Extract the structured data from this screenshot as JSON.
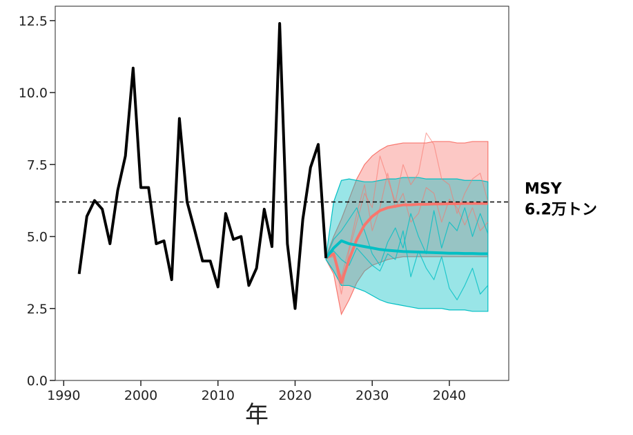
{
  "chart_data": {
    "type": "line",
    "xlabel": "年",
    "xlim": [
      1988.9,
      2047.7
    ],
    "xticks": [
      1990,
      2000,
      2010,
      2020,
      2030,
      2040
    ],
    "ylim": [
      0,
      13
    ],
    "yticks": [
      {
        "value": 0,
        "label": "0.0"
      },
      2.5,
      {
        "value": 5,
        "label": "5.0"
      },
      7.5,
      {
        "value": 10,
        "label": "10.0"
      },
      12.5
    ],
    "hline": {
      "value": 6.2,
      "labels": [
        "MSY",
        "6.2万トン"
      ],
      "color": "#000000"
    },
    "bands": [
      {
        "color": "#f8766d",
        "x": [
          2024,
          2025,
          2026,
          2027,
          2028,
          2029,
          2030,
          2031,
          2032,
          2033,
          2034,
          2035,
          2036,
          2037,
          2038,
          2039,
          2040,
          2041,
          2042,
          2043,
          2044,
          2045
        ],
        "lower": [
          4.2,
          3.7,
          2.3,
          2.8,
          3.4,
          3.8,
          4.0,
          4.1,
          4.2,
          4.25,
          4.3,
          4.3,
          4.3,
          4.3,
          4.3,
          4.3,
          4.3,
          4.3,
          4.3,
          4.3,
          4.3,
          4.3
        ],
        "upper": [
          4.3,
          5.0,
          5.6,
          6.3,
          7.0,
          7.5,
          7.8,
          8.0,
          8.15,
          8.2,
          8.25,
          8.25,
          8.25,
          8.25,
          8.3,
          8.3,
          8.3,
          8.25,
          8.25,
          8.3,
          8.3,
          8.3
        ]
      },
      {
        "color": "#00bfc4",
        "x": [
          2024,
          2025,
          2026,
          2027,
          2028,
          2029,
          2030,
          2031,
          2032,
          2033,
          2034,
          2035,
          2036,
          2037,
          2038,
          2039,
          2040,
          2041,
          2042,
          2043,
          2044,
          2045
        ],
        "lower": [
          4.2,
          3.8,
          3.3,
          3.3,
          3.2,
          3.1,
          2.95,
          2.8,
          2.7,
          2.65,
          2.6,
          2.55,
          2.5,
          2.5,
          2.5,
          2.5,
          2.45,
          2.45,
          2.45,
          2.4,
          2.4,
          2.4
        ],
        "upper": [
          4.3,
          6.2,
          6.95,
          7.0,
          6.95,
          6.9,
          6.9,
          6.95,
          7.0,
          7.0,
          7.05,
          7.05,
          7.05,
          7.0,
          7.0,
          7.0,
          7.0,
          7.0,
          6.95,
          6.95,
          6.95,
          6.9
        ]
      }
    ],
    "series": [
      {
        "color": "#f8766d",
        "line_width": 1.2,
        "opacity": 0.6,
        "x": [
          2024,
          2025,
          2026,
          2027,
          2028,
          2029,
          2030,
          2031,
          2032,
          2033,
          2034,
          2035,
          2036,
          2037,
          2038,
          2039,
          2040,
          2041,
          2042,
          2043,
          2044,
          2045
        ],
        "values": [
          4.25,
          4.4,
          3.0,
          4.5,
          5.5,
          6.5,
          6.0,
          7.8,
          7.0,
          6.2,
          7.5,
          6.8,
          7.2,
          8.6,
          8.2,
          7.0,
          6.8,
          5.8,
          6.5,
          7.0,
          7.2,
          6.2
        ]
      },
      {
        "color": "#f8766d",
        "line_width": 1.2,
        "opacity": 0.6,
        "x": [
          2024,
          2025,
          2026,
          2027,
          2028,
          2029,
          2030,
          2031,
          2032,
          2033,
          2034,
          2035,
          2036,
          2037,
          2038,
          2039,
          2040,
          2041,
          2042,
          2043,
          2044,
          2045
        ],
        "values": [
          4.25,
          4.3,
          3.6,
          4.6,
          5.8,
          6.8,
          5.2,
          6.0,
          7.2,
          6.0,
          6.5,
          5.5,
          5.8,
          6.7,
          6.5,
          5.5,
          6.3,
          6.0,
          5.4,
          6.0,
          5.2,
          5.5
        ]
      },
      {
        "color": "#00bfc4",
        "line_width": 1.2,
        "opacity": 0.8,
        "x": [
          2024,
          2025,
          2026,
          2027,
          2028,
          2029,
          2030,
          2031,
          2032,
          2033,
          2034,
          2035,
          2036,
          2037,
          2038,
          2039,
          2040,
          2041,
          2042,
          2043,
          2044,
          2045
        ],
        "values": [
          4.25,
          4.9,
          5.2,
          5.6,
          6.0,
          5.2,
          4.4,
          4.0,
          4.8,
          5.3,
          4.6,
          5.8,
          5.0,
          4.4,
          5.9,
          4.6,
          5.5,
          5.2,
          6.0,
          5.0,
          5.8,
          5.1
        ]
      },
      {
        "color": "#00bfc4",
        "line_width": 1.2,
        "opacity": 0.8,
        "x": [
          2024,
          2025,
          2026,
          2027,
          2028,
          2029,
          2030,
          2031,
          2032,
          2033,
          2034,
          2035,
          2036,
          2037,
          2038,
          2039,
          2040,
          2041,
          2042,
          2043,
          2044,
          2045
        ],
        "values": [
          4.25,
          4.5,
          4.2,
          4.0,
          4.6,
          4.3,
          4.0,
          3.8,
          4.4,
          4.2,
          5.2,
          3.6,
          4.5,
          3.9,
          3.5,
          4.3,
          3.2,
          2.8,
          3.3,
          3.9,
          3.0,
          3.3
        ]
      },
      {
        "color": "#f8766d",
        "line_width": 4,
        "opacity": 1,
        "x": [
          2024,
          2025,
          2026,
          2027,
          2028,
          2029,
          2030,
          2031,
          2032,
          2033,
          2034,
          2035,
          2036,
          2037,
          2038,
          2039,
          2040,
          2041,
          2042,
          2043,
          2044,
          2045
        ],
        "values": [
          4.25,
          4.4,
          3.4,
          4.2,
          4.9,
          5.4,
          5.7,
          5.9,
          6.0,
          6.05,
          6.1,
          6.1,
          6.12,
          6.12,
          6.13,
          6.13,
          6.14,
          6.14,
          6.15,
          6.15,
          6.15,
          6.15
        ]
      },
      {
        "color": "#00bfc4",
        "line_width": 4,
        "opacity": 1,
        "x": [
          2024,
          2025,
          2026,
          2027,
          2028,
          2029,
          2030,
          2031,
          2032,
          2033,
          2034,
          2035,
          2036,
          2037,
          2038,
          2039,
          2040,
          2041,
          2042,
          2043,
          2044,
          2045
        ],
        "values": [
          4.25,
          4.6,
          4.85,
          4.75,
          4.7,
          4.65,
          4.6,
          4.55,
          4.52,
          4.5,
          4.48,
          4.47,
          4.46,
          4.45,
          4.44,
          4.43,
          4.42,
          4.42,
          4.41,
          4.41,
          4.4,
          4.4
        ]
      },
      {
        "color": "#000000",
        "line_width": 4,
        "opacity": 1,
        "x": [
          1992,
          1993,
          1994,
          1995,
          1996,
          1997,
          1998,
          1999,
          2000,
          2001,
          2002,
          2003,
          2004,
          2005,
          2006,
          2007,
          2008,
          2009,
          2010,
          2011,
          2012,
          2013,
          2014,
          2015,
          2016,
          2017,
          2018,
          2019,
          2020,
          2021,
          2022,
          2023,
          2024
        ],
        "values": [
          3.7,
          5.7,
          6.25,
          5.95,
          4.75,
          6.6,
          7.8,
          10.85,
          6.7,
          6.7,
          4.75,
          4.85,
          3.5,
          9.1,
          6.2,
          5.2,
          4.15,
          4.15,
          3.25,
          5.8,
          4.9,
          5.0,
          3.3,
          3.9,
          5.95,
          4.65,
          12.4,
          4.75,
          2.5,
          5.6,
          7.4,
          8.2,
          4.25
        ]
      }
    ]
  }
}
